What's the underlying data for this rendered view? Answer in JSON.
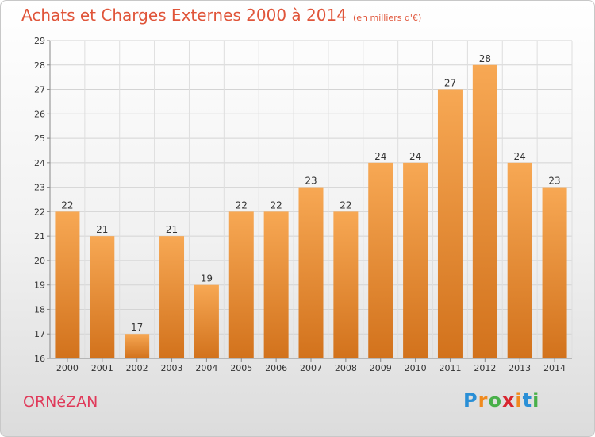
{
  "title": "Achats et Charges Externes 2000 à 2014",
  "subtitle": "(en milliers d'€)",
  "place_name": "ORNéZAN",
  "logo": {
    "text": "Proxiti",
    "letters": [
      "P",
      "r",
      "o",
      "x",
      "i",
      "t",
      "i"
    ],
    "colors": [
      "#2a8fd6",
      "#f08a1e",
      "#49b04a",
      "#d8262f",
      "#f08a1e",
      "#2a8fd6",
      "#49b04a"
    ]
  },
  "colors": {
    "bar_top": "#f7a854",
    "bar_bottom": "#d2721c",
    "text": "#333333",
    "title": "#e0553a"
  },
  "chart_data": {
    "type": "bar",
    "categories": [
      "2000",
      "2001",
      "2002",
      "2003",
      "2004",
      "2005",
      "2006",
      "2007",
      "2008",
      "2009",
      "2010",
      "2011",
      "2012",
      "2013",
      "2014"
    ],
    "values": [
      22,
      21,
      17,
      21,
      19,
      22,
      22,
      23,
      22,
      24,
      24,
      27,
      28,
      24,
      23
    ],
    "title": "Achats et Charges Externes 2000 à 2014",
    "xlabel": "",
    "ylabel": "",
    "ylim": [
      16,
      29
    ],
    "yticks": [
      16,
      17,
      18,
      19,
      20,
      21,
      22,
      23,
      24,
      25,
      26,
      27,
      28,
      29
    ],
    "grid": true,
    "legend": "none"
  }
}
